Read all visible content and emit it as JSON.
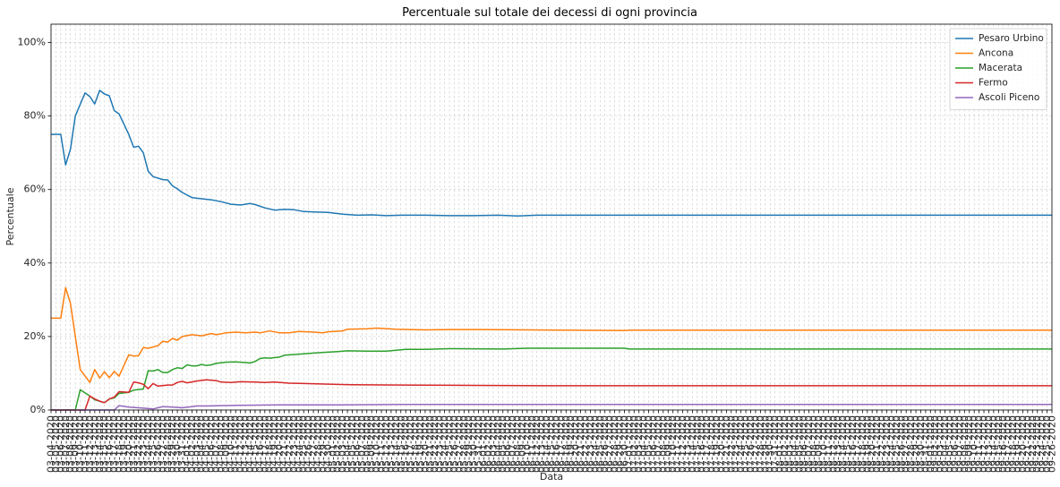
{
  "chart_data": {
    "type": "line",
    "title": "Percentuale sul totale dei decessi di ogni provincia",
    "xlabel": "Data",
    "ylabel": "Percentuale",
    "ylim": [
      0,
      105
    ],
    "yticks": [
      0,
      20,
      40,
      60,
      80,
      100
    ],
    "ytick_labels": [
      "0%",
      "20%",
      "40%",
      "60%",
      "80%",
      "100%"
    ],
    "grid": true,
    "legend_position": "top-right",
    "x_start": "03-04-2020",
    "x_end": "09-26-2020",
    "x_tick_format": "MM-DD-YYYY",
    "series": [
      {
        "name": "Pesaro Urbino",
        "color": "#1f77b4",
        "points": [
          [
            "03-04-2020",
            75
          ],
          [
            "03-06-2020",
            75
          ],
          [
            "03-07-2020",
            66.7
          ],
          [
            "03-08-2020",
            71
          ],
          [
            "03-09-2020",
            80
          ],
          [
            "03-11-2020",
            86.3
          ],
          [
            "03-12-2020",
            85.3
          ],
          [
            "03-13-2020",
            83.3
          ],
          [
            "03-14-2020",
            87
          ],
          [
            "03-15-2020",
            86
          ],
          [
            "03-16-2020",
            85.5
          ],
          [
            "03-17-2020",
            81.5
          ],
          [
            "03-18-2020",
            80.6
          ],
          [
            "03-20-2020",
            75
          ],
          [
            "03-21-2020",
            71.5
          ],
          [
            "03-22-2020",
            71.8
          ],
          [
            "03-23-2020",
            70
          ],
          [
            "03-24-2020",
            65
          ],
          [
            "03-25-2020",
            63.5
          ],
          [
            "03-27-2020",
            62.7
          ],
          [
            "03-28-2020",
            62.6
          ],
          [
            "03-29-2020",
            61
          ],
          [
            "03-30-2020",
            60.2
          ],
          [
            "03-31-2020",
            59.2
          ],
          [
            "04-02-2020",
            57.8
          ],
          [
            "04-04-2020",
            57.5
          ],
          [
            "04-06-2020",
            57.2
          ],
          [
            "04-08-2020",
            56.7
          ],
          [
            "04-10-2020",
            56
          ],
          [
            "04-12-2020",
            55.8
          ],
          [
            "04-14-2020",
            56.2
          ],
          [
            "04-15-2020",
            55.9
          ],
          [
            "04-17-2020",
            55
          ],
          [
            "04-19-2020",
            54.4
          ],
          [
            "04-21-2020",
            54.6
          ],
          [
            "04-23-2020",
            54.5
          ],
          [
            "04-25-2020",
            54
          ],
          [
            "04-27-2020",
            53.9
          ],
          [
            "04-30-2020",
            53.8
          ],
          [
            "05-03-2020",
            53.3
          ],
          [
            "05-06-2020",
            53
          ],
          [
            "05-09-2020",
            53.1
          ],
          [
            "05-12-2020",
            52.9
          ],
          [
            "05-15-2020",
            53
          ],
          [
            "05-20-2020",
            53
          ],
          [
            "05-25-2020",
            52.9
          ],
          [
            "05-30-2020",
            52.9
          ],
          [
            "06-04-2020",
            53
          ],
          [
            "06-08-2020",
            52.8
          ],
          [
            "06-12-2020",
            53
          ],
          [
            "06-20-2020",
            53
          ],
          [
            "07-01-2020",
            53
          ],
          [
            "07-15-2020",
            53
          ],
          [
            "08-01-2020",
            53
          ],
          [
            "08-15-2020",
            53
          ],
          [
            "09-01-2020",
            53
          ],
          [
            "09-15-2020",
            53
          ],
          [
            "09-26-2020",
            53
          ]
        ]
      },
      {
        "name": "Ancona",
        "color": "#ff7f0e",
        "points": [
          [
            "03-04-2020",
            25
          ],
          [
            "03-06-2020",
            25
          ],
          [
            "03-07-2020",
            33.3
          ],
          [
            "03-08-2020",
            29
          ],
          [
            "03-10-2020",
            11
          ],
          [
            "03-12-2020",
            7.5
          ],
          [
            "03-13-2020",
            11
          ],
          [
            "03-14-2020",
            8.7
          ],
          [
            "03-15-2020",
            10.4
          ],
          [
            "03-16-2020",
            8.8
          ],
          [
            "03-17-2020",
            10.5
          ],
          [
            "03-18-2020",
            9.2
          ],
          [
            "03-20-2020",
            15
          ],
          [
            "03-21-2020",
            14.7
          ],
          [
            "03-22-2020",
            14.8
          ],
          [
            "03-23-2020",
            17
          ],
          [
            "03-24-2020",
            16.8
          ],
          [
            "03-26-2020",
            17.5
          ],
          [
            "03-27-2020",
            18.7
          ],
          [
            "03-28-2020",
            18.5
          ],
          [
            "03-29-2020",
            19.5
          ],
          [
            "03-30-2020",
            19
          ],
          [
            "03-31-2020",
            20
          ],
          [
            "04-02-2020",
            20.5
          ],
          [
            "04-04-2020",
            20.2
          ],
          [
            "04-06-2020",
            20.8
          ],
          [
            "04-07-2020",
            20.5
          ],
          [
            "04-09-2020",
            21
          ],
          [
            "04-11-2020",
            21.2
          ],
          [
            "04-13-2020",
            21
          ],
          [
            "04-15-2020",
            21.2
          ],
          [
            "04-16-2020",
            21
          ],
          [
            "04-18-2020",
            21.5
          ],
          [
            "04-20-2020",
            21
          ],
          [
            "04-22-2020",
            21
          ],
          [
            "04-24-2020",
            21.4
          ],
          [
            "04-27-2020",
            21.2
          ],
          [
            "04-29-2020",
            21
          ],
          [
            "04-30-2020",
            21.3
          ],
          [
            "05-03-2020",
            21.5
          ],
          [
            "05-04-2020",
            22
          ],
          [
            "05-08-2020",
            22.1
          ],
          [
            "05-10-2020",
            22.3
          ],
          [
            "05-14-2020",
            22
          ],
          [
            "05-20-2020",
            21.8
          ],
          [
            "05-25-2020",
            21.9
          ],
          [
            "06-01-2020",
            21.9
          ],
          [
            "06-10-2020",
            21.8
          ],
          [
            "06-20-2020",
            21.7
          ],
          [
            "06-30-2020",
            21.6
          ],
          [
            "07-01-2020",
            21.7
          ],
          [
            "07-15-2020",
            21.7
          ],
          [
            "08-01-2020",
            21.7
          ],
          [
            "08-15-2020",
            21.7
          ],
          [
            "09-01-2020",
            21.7
          ],
          [
            "09-26-2020",
            21.7
          ]
        ]
      },
      {
        "name": "Macerata",
        "color": "#2ca02c",
        "points": [
          [
            "03-04-2020",
            0
          ],
          [
            "03-09-2020",
            0
          ],
          [
            "03-10-2020",
            5.5
          ],
          [
            "03-12-2020",
            3.8
          ],
          [
            "03-13-2020",
            2.8
          ],
          [
            "03-15-2020",
            2
          ],
          [
            "03-16-2020",
            3
          ],
          [
            "03-17-2020",
            3.3
          ],
          [
            "03-18-2020",
            4.5
          ],
          [
            "03-20-2020",
            4.8
          ],
          [
            "03-21-2020",
            5.4
          ],
          [
            "03-23-2020",
            5.7
          ],
          [
            "03-24-2020",
            10.7
          ],
          [
            "03-25-2020",
            10.6
          ],
          [
            "03-26-2020",
            11
          ],
          [
            "03-27-2020",
            10.2
          ],
          [
            "03-28-2020",
            10.2
          ],
          [
            "03-29-2020",
            11
          ],
          [
            "03-30-2020",
            11.5
          ],
          [
            "03-31-2020",
            11.3
          ],
          [
            "04-01-2020",
            12.3
          ],
          [
            "04-02-2020",
            12
          ],
          [
            "04-03-2020",
            12
          ],
          [
            "04-04-2020",
            12.4
          ],
          [
            "04-05-2020",
            12.1
          ],
          [
            "04-06-2020",
            12.3
          ],
          [
            "04-07-2020",
            12.7
          ],
          [
            "04-09-2020",
            13
          ],
          [
            "04-11-2020",
            13.1
          ],
          [
            "04-13-2020",
            12.9
          ],
          [
            "04-14-2020",
            12.8
          ],
          [
            "04-15-2020",
            13.2
          ],
          [
            "04-16-2020",
            14
          ],
          [
            "04-17-2020",
            14.2
          ],
          [
            "04-18-2020",
            14.1
          ],
          [
            "04-20-2020",
            14.4
          ],
          [
            "04-21-2020",
            14.9
          ],
          [
            "04-25-2020",
            15.3
          ],
          [
            "04-28-2020",
            15.6
          ],
          [
            "05-02-2020",
            15.9
          ],
          [
            "05-04-2020",
            16.1
          ],
          [
            "05-08-2020",
            16
          ],
          [
            "05-12-2020",
            16
          ],
          [
            "05-16-2020",
            16.5
          ],
          [
            "05-20-2020",
            16.5
          ],
          [
            "05-25-2020",
            16.7
          ],
          [
            "06-05-2020",
            16.6
          ],
          [
            "06-10-2020",
            16.8
          ],
          [
            "06-20-2020",
            16.8
          ],
          [
            "06-30-2020",
            16.8
          ],
          [
            "07-01-2020",
            16.6
          ],
          [
            "07-15-2020",
            16.6
          ],
          [
            "08-01-2020",
            16.6
          ],
          [
            "08-15-2020",
            16.6
          ],
          [
            "09-01-2020",
            16.6
          ],
          [
            "09-26-2020",
            16.6
          ]
        ]
      },
      {
        "name": "Fermo",
        "color": "#d62728",
        "points": [
          [
            "03-04-2020",
            0
          ],
          [
            "03-11-2020",
            0
          ],
          [
            "03-12-2020",
            3.8
          ],
          [
            "03-13-2020",
            3
          ],
          [
            "03-14-2020",
            2.4
          ],
          [
            "03-15-2020",
            2
          ],
          [
            "03-16-2020",
            3
          ],
          [
            "03-17-2020",
            3.5
          ],
          [
            "03-18-2020",
            5
          ],
          [
            "03-20-2020",
            4.8
          ],
          [
            "03-21-2020",
            7.6
          ],
          [
            "03-22-2020",
            7.4
          ],
          [
            "03-23-2020",
            7
          ],
          [
            "03-24-2020",
            5.8
          ],
          [
            "03-25-2020",
            7.2
          ],
          [
            "03-26-2020",
            6.5
          ],
          [
            "03-28-2020",
            6.8
          ],
          [
            "03-29-2020",
            6.8
          ],
          [
            "03-30-2020",
            7.5
          ],
          [
            "03-31-2020",
            7.8
          ],
          [
            "04-01-2020",
            7.4
          ],
          [
            "04-03-2020",
            7.9
          ],
          [
            "04-05-2020",
            8.2
          ],
          [
            "04-07-2020",
            8
          ],
          [
            "04-08-2020",
            7.6
          ],
          [
            "04-10-2020",
            7.5
          ],
          [
            "04-12-2020",
            7.7
          ],
          [
            "04-15-2020",
            7.6
          ],
          [
            "04-17-2020",
            7.5
          ],
          [
            "04-19-2020",
            7.6
          ],
          [
            "04-22-2020",
            7.3
          ],
          [
            "04-25-2020",
            7.2
          ],
          [
            "05-01-2020",
            7
          ],
          [
            "05-05-2020",
            6.9
          ],
          [
            "05-15-2020",
            6.8
          ],
          [
            "05-30-2020",
            6.7
          ],
          [
            "06-15-2020",
            6.6
          ],
          [
            "07-01-2020",
            6.6
          ],
          [
            "07-15-2020",
            6.6
          ],
          [
            "08-01-2020",
            6.6
          ],
          [
            "08-15-2020",
            6.6
          ],
          [
            "09-01-2020",
            6.6
          ],
          [
            "09-26-2020",
            6.6
          ]
        ]
      },
      {
        "name": "Ascoli Piceno",
        "color": "#9467bd",
        "points": [
          [
            "03-04-2020",
            0
          ],
          [
            "03-17-2020",
            0
          ],
          [
            "03-18-2020",
            1.2
          ],
          [
            "03-20-2020",
            0.8
          ],
          [
            "03-23-2020",
            0.5
          ],
          [
            "03-25-2020",
            0.3
          ],
          [
            "03-26-2020",
            0.6
          ],
          [
            "03-27-2020",
            0.9
          ],
          [
            "03-29-2020",
            0.8
          ],
          [
            "03-31-2020",
            0.6
          ],
          [
            "04-02-2020",
            0.9
          ],
          [
            "04-03-2020",
            1.1
          ],
          [
            "04-05-2020",
            1.1
          ],
          [
            "04-08-2020",
            1.2
          ],
          [
            "04-12-2020",
            1.3
          ],
          [
            "04-20-2020",
            1.4
          ],
          [
            "05-01-2020",
            1.4
          ],
          [
            "05-15-2020",
            1.5
          ],
          [
            "06-01-2020",
            1.5
          ],
          [
            "07-01-2020",
            1.5
          ],
          [
            "08-01-2020",
            1.5
          ],
          [
            "09-01-2020",
            1.5
          ],
          [
            "09-26-2020",
            1.5
          ]
        ]
      }
    ]
  }
}
